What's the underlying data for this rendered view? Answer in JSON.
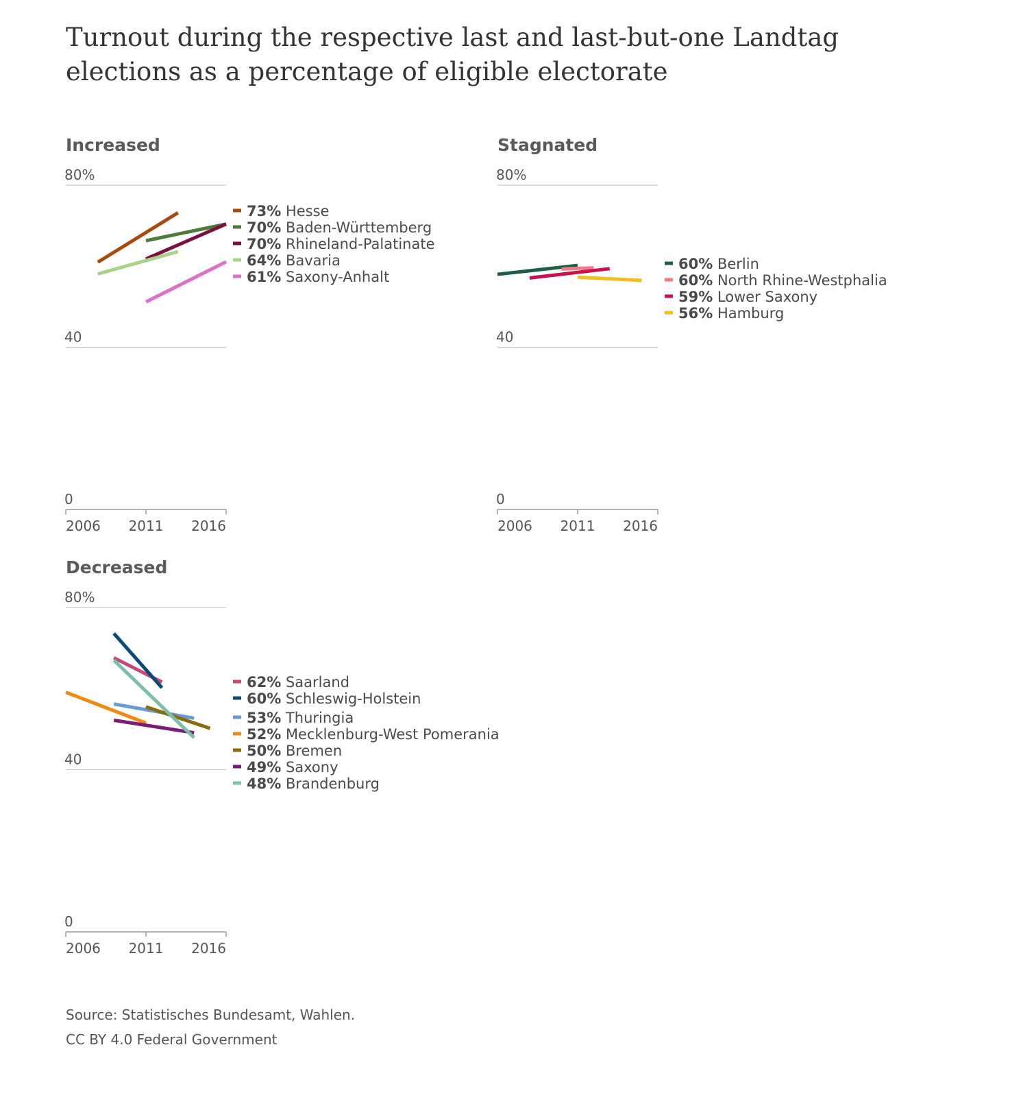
{
  "title": "Turnout during the respective last and last-but-one Landtag elections as a percentage of eligible electorate",
  "source": "Source: Statistisches Bundesamt, Wahlen.",
  "license": "CC BY 4.0 Federal Government",
  "chart_data": [
    {
      "type": "line",
      "title": "Increased",
      "ylim": [
        0,
        80
      ],
      "yticks": [
        "80%",
        "40",
        "0"
      ],
      "xlim": [
        2006,
        2016
      ],
      "xticks": [
        "2006",
        "2011",
        "2016"
      ],
      "series": [
        {
          "name": "Hesse",
          "label": "73%",
          "color": "#a84a10",
          "x": [
            2008,
            2013
          ],
          "y": [
            61.0,
            73.2
          ]
        },
        {
          "name": "Baden-Württemberg",
          "label": "70%",
          "color": "#4f7a38",
          "x": [
            2011,
            2016
          ],
          "y": [
            66.3,
            70.4
          ]
        },
        {
          "name": "Rhineland-Palatinate",
          "label": "70%",
          "color": "#7a1040",
          "x": [
            2011,
            2016
          ],
          "y": [
            61.8,
            70.4
          ]
        },
        {
          "name": "Bavaria",
          "label": "64%",
          "color": "#a8d48a",
          "x": [
            2008,
            2013
          ],
          "y": [
            58.1,
            63.6
          ]
        },
        {
          "name": "Saxony-Anhalt",
          "label": "61%",
          "color": "#dc72c8",
          "x": [
            2011,
            2016
          ],
          "y": [
            51.2,
            61.1
          ]
        }
      ]
    },
    {
      "type": "line",
      "title": "Stagnated",
      "ylim": [
        0,
        80
      ],
      "yticks": [
        "80%",
        "40",
        "0"
      ],
      "xlim": [
        2006,
        2016
      ],
      "xticks": [
        "2006",
        "2011",
        "2016"
      ],
      "series": [
        {
          "name": "Berlin",
          "label": "60%",
          "color": "#1e5e42",
          "x": [
            2006,
            2011
          ],
          "y": [
            58.0,
            60.2
          ]
        },
        {
          "name": "North Rhine-Westphalia",
          "label": "60%",
          "color": "#f27a8a",
          "x": [
            2010,
            2012
          ],
          "y": [
            59.3,
            59.6
          ]
        },
        {
          "name": "Lower Saxony",
          "label": "59%",
          "color": "#c8124a",
          "x": [
            2008,
            2013
          ],
          "y": [
            57.1,
            59.4
          ]
        },
        {
          "name": "Hamburg",
          "label": "56%",
          "color": "#f2c01e",
          "x": [
            2011,
            2015
          ],
          "y": [
            57.3,
            56.5
          ]
        }
      ]
    },
    {
      "type": "line",
      "title": "Decreased",
      "ylim": [
        0,
        80
      ],
      "yticks": [
        "80%",
        "40",
        "0"
      ],
      "xlim": [
        2006,
        2016
      ],
      "xticks": [
        "2006",
        "2011",
        "2016"
      ],
      "series": [
        {
          "name": "Saarland",
          "label": "62%",
          "color": "#c84a72",
          "x": [
            2009,
            2012
          ],
          "y": [
            67.6,
            61.6
          ]
        },
        {
          "name": "Schleswig-Holstein",
          "label": "60%",
          "color": "#0a4a7a",
          "x": [
            2009,
            2012
          ],
          "y": [
            73.6,
            60.2
          ]
        },
        {
          "name": "Thuringia",
          "label": "53%",
          "color": "#6a9ad2",
          "x": [
            2009,
            2014
          ],
          "y": [
            56.2,
            52.7
          ]
        },
        {
          "name": "Mecklenburg-West Pomerania",
          "label": "52%",
          "color": "#f08a12",
          "x": [
            2006,
            2011
          ],
          "y": [
            59.1,
            51.5
          ]
        },
        {
          "name": "Bremen",
          "label": "50%",
          "color": "#8a6a0a",
          "x": [
            2011,
            2015
          ],
          "y": [
            55.5,
            50.2
          ]
        },
        {
          "name": "Saxony",
          "label": "49%",
          "color": "#7a1a7a",
          "x": [
            2009,
            2014
          ],
          "y": [
            52.2,
            49.1
          ]
        },
        {
          "name": "Brandenburg",
          "label": "48%",
          "color": "#7ac0a8",
          "x": [
            2009,
            2014
          ],
          "y": [
            67.0,
            47.9
          ]
        }
      ]
    }
  ]
}
